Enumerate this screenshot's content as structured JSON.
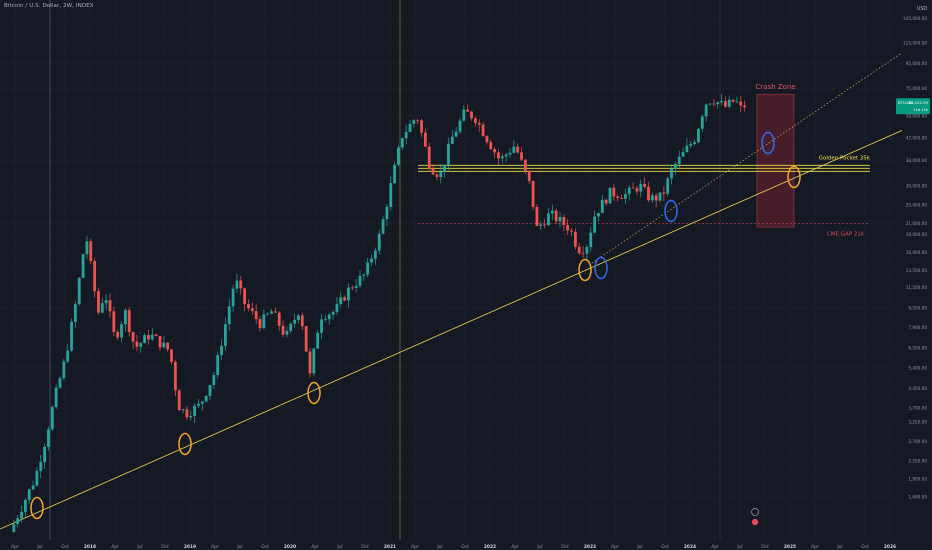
{
  "header": {
    "symbol_title": "Bitcoin / U.S. Dollar, 2W, INDEX"
  },
  "price_badge": {
    "ticker": "BTCUSD",
    "price": "65,222.99",
    "countdown": "11d 13h"
  },
  "colors": {
    "background": "#151924",
    "up": "#26a69a",
    "down": "#ef5350",
    "trendline": "#f0d54c",
    "dotted_trend": "#c9b85a",
    "golden_pocket": "#f0e442",
    "crash_zone_fill": "#5a1f2c",
    "crash_zone_border": "#a43a4c",
    "cme_gap_line": "#c8414f",
    "orange_circle": "#f5a623",
    "blue_circle": "#2f6cf0",
    "halving_2016": "#9aa0aa",
    "halving_2020": "#d9d04a",
    "halving_2024": "#9c2f3c"
  },
  "annotations": {
    "crash_zone_label": "Crash Zone",
    "golden_pocket_label": "Golden Pocket  35k",
    "cme_gap_label": "CME GAP 21k"
  },
  "chart_data": {
    "type": "candlestick",
    "title": "Bitcoin / U.S. Dollar, 2W, INDEX",
    "y_scale": "log",
    "y_unit": "USD",
    "ylim": [
      1100,
      175000
    ],
    "xlim": [
      "2017-03",
      "2026-02"
    ],
    "y_ticks": [
      "145,000.00",
      "115,000.00",
      "95,000.00",
      "75,000.00",
      "58,000.00",
      "47,000.00",
      "38,000.00",
      "30,000.00",
      "25,000.00",
      "21,000.00",
      "19,000.00",
      "16,000.00",
      "13,500.00",
      "11,500.00",
      "9,500.00",
      "7,900.00",
      "6,500.00",
      "5,400.00",
      "4,450.00",
      "3,700.00",
      "3,250.00",
      "2,700.00",
      "2,250.00",
      "1,900.00",
      "1,600.00"
    ],
    "x_ticks": [
      "Apr",
      "Jul",
      "Oct",
      "2018",
      "Apr",
      "Jul",
      "Oct",
      "2019",
      "Apr",
      "Jul",
      "Oct",
      "2020",
      "Apr",
      "Jul",
      "Oct",
      "2021",
      "Apr",
      "Jul",
      "Oct",
      "2022",
      "Apr",
      "Jul",
      "Oct",
      "2023",
      "Apr",
      "Jul",
      "Oct",
      "2024",
      "Apr",
      "Jul",
      "Oct",
      "2025",
      "Apr",
      "Jul",
      "Oct",
      "2026"
    ],
    "price_path": [
      [
        2017.2,
        1150
      ],
      [
        2017.45,
        1900
      ],
      [
        2017.55,
        2700
      ],
      [
        2017.65,
        4100
      ],
      [
        2017.75,
        5800
      ],
      [
        2017.85,
        9500
      ],
      [
        2017.96,
        19000
      ],
      [
        2018.08,
        9000
      ],
      [
        2018.15,
        11000
      ],
      [
        2018.25,
        7000
      ],
      [
        2018.35,
        9200
      ],
      [
        2018.45,
        6500
      ],
      [
        2018.6,
        7400
      ],
      [
        2018.8,
        6300
      ],
      [
        2018.88,
        3800
      ],
      [
        2018.96,
        3500
      ],
      [
        2019.1,
        3800
      ],
      [
        2019.25,
        5200
      ],
      [
        2019.35,
        8000
      ],
      [
        2019.45,
        12500
      ],
      [
        2019.55,
        9800
      ],
      [
        2019.7,
        8200
      ],
      [
        2019.82,
        9200
      ],
      [
        2019.96,
        7200
      ],
      [
        2020.1,
        9500
      ],
      [
        2020.2,
        5000
      ],
      [
        2020.3,
        8800
      ],
      [
        2020.45,
        9200
      ],
      [
        2020.6,
        11500
      ],
      [
        2020.75,
        13000
      ],
      [
        2020.9,
        19000
      ],
      [
        2021.0,
        29000
      ],
      [
        2021.12,
        48000
      ],
      [
        2021.27,
        58000
      ],
      [
        2021.4,
        36000
      ],
      [
        2021.5,
        33000
      ],
      [
        2021.62,
        47000
      ],
      [
        2021.75,
        60000
      ],
      [
        2021.85,
        57000
      ],
      [
        2021.98,
        46000
      ],
      [
        2022.1,
        38000
      ],
      [
        2022.25,
        44000
      ],
      [
        2022.4,
        30000
      ],
      [
        2022.47,
        20000
      ],
      [
        2022.6,
        23000
      ],
      [
        2022.8,
        20000
      ],
      [
        2022.88,
        16500
      ],
      [
        2022.96,
        16700
      ],
      [
        2023.05,
        23000
      ],
      [
        2023.2,
        28000
      ],
      [
        2023.35,
        27500
      ],
      [
        2023.5,
        30000
      ],
      [
        2023.6,
        26500
      ],
      [
        2023.72,
        27000
      ],
      [
        2023.82,
        35000
      ],
      [
        2023.96,
        42000
      ],
      [
        2024.05,
        47000
      ],
      [
        2024.15,
        65000
      ],
      [
        2024.22,
        68000
      ],
      [
        2024.35,
        63000
      ],
      [
        2024.45,
        67000
      ],
      [
        2024.52,
        61000
      ],
      [
        2024.56,
        65223
      ]
    ],
    "levels": [
      {
        "name": "Golden Pocket  35k",
        "price": 35000
      },
      {
        "name": "CME GAP 21k",
        "price": 21000
      }
    ],
    "crash_zone": {
      "label": "Crash Zone",
      "x_from": "2024-07",
      "x_to": "2024-11",
      "price_from": 71000,
      "price_to": 20300
    }
  }
}
